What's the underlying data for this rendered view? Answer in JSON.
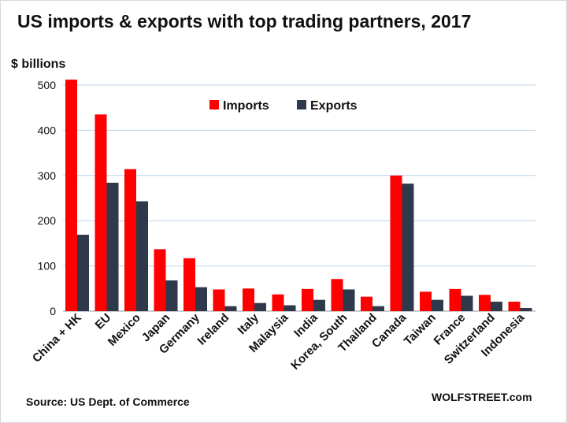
{
  "chart_data": {
    "type": "bar",
    "title": "US imports & exports with top trading partners, 2017",
    "ylabel": "$ billions",
    "ylim": [
      0,
      500
    ],
    "yticks": [
      0,
      100,
      200,
      300,
      400,
      500
    ],
    "grid": true,
    "legend_position": "top-center",
    "categories": [
      "China + HK",
      "EU",
      "Mexico",
      "Japan",
      "Germany",
      "Ireland",
      "Italy",
      "Malaysia",
      "India",
      "Korea, South",
      "Thailand",
      "Canada",
      "Taiwan",
      "France",
      "Switzerland",
      "Indonesia"
    ],
    "series": [
      {
        "name": "Imports",
        "color": "#ff0000",
        "values": [
          512,
          435,
          314,
          137,
          117,
          48,
          50,
          37,
          49,
          71,
          32,
          300,
          43,
          49,
          36,
          21
        ]
      },
      {
        "name": "Exports",
        "color": "#2e3a4c",
        "values": [
          169,
          284,
          243,
          68,
          53,
          11,
          18,
          13,
          25,
          48,
          11,
          282,
          25,
          34,
          21,
          7
        ]
      }
    ]
  },
  "footer": {
    "source": "Source: US Dept. of Commerce",
    "brand": "WOLFSTREET.com"
  }
}
